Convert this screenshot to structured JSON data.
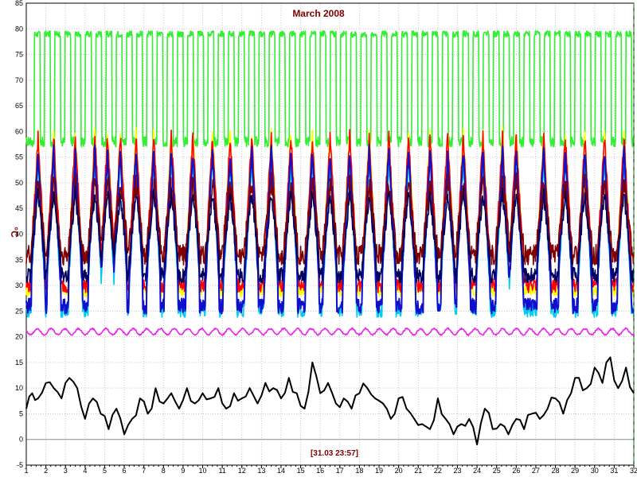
{
  "chart_data": {
    "type": "line",
    "title": "March 2008",
    "ylabel": "°C",
    "timestamp_label": "[31.03 23:57]",
    "xlim": [
      1,
      32
    ],
    "ylim": [
      -5,
      85
    ],
    "x_ticks": [
      "1",
      "2",
      "3",
      "4",
      "5",
      "6",
      "7",
      "8",
      "9",
      "10",
      "11",
      "12",
      "13",
      "14",
      "15",
      "16",
      "17",
      "18",
      "19",
      "20",
      "21",
      "22",
      "23",
      "24",
      "25",
      "26",
      "27",
      "28",
      "29",
      "30",
      "31",
      "32"
    ],
    "y_ticks": [
      "-5",
      "0",
      "5",
      "10",
      "15",
      "20",
      "25",
      "30",
      "35",
      "40",
      "45",
      "50",
      "55",
      "60",
      "65",
      "70",
      "75",
      "80",
      "85"
    ],
    "grid": true,
    "cursor_x": 32,
    "colors": {
      "grid": "#c8c8c8",
      "zero_line": "#8c8c8c",
      "axis": "#000000",
      "cursor": "#008000",
      "title": "#800000"
    },
    "series": [
      {
        "color": "#33ee33",
        "base": 79,
        "trough": 58,
        "dip_width": 0.22,
        "noise": 0.6,
        "peaks": []
      },
      {
        "color": "#ffff00",
        "base": 29,
        "peak": 60,
        "noise": 1.2,
        "peaks": [
          1.6,
          2.4,
          3.5,
          4.5,
          5.15,
          5.8,
          6.6,
          7.5,
          8.4,
          9.5,
          10.5,
          11.4,
          12.5,
          13.5,
          14.5,
          15.6,
          16.5,
          17.5,
          18.5,
          19.5,
          20.5,
          21.6,
          22.5,
          23.3,
          24.3,
          25.3,
          26.0,
          27.4,
          28.5,
          29.5,
          30.5,
          31.5
        ]
      },
      {
        "color": "#ff0000",
        "base": 30,
        "peak": 59,
        "noise": 1.4,
        "peaks": [
          1.6,
          2.4,
          3.5,
          4.5,
          5.15,
          5.8,
          6.6,
          7.5,
          8.4,
          9.5,
          10.5,
          11.4,
          12.5,
          13.5,
          14.5,
          15.6,
          16.5,
          17.5,
          18.5,
          19.5,
          20.5,
          21.6,
          22.5,
          23.3,
          24.3,
          25.3,
          26.0,
          27.4,
          28.5,
          29.5,
          30.5,
          31.5
        ]
      },
      {
        "color": "#00ccee",
        "base": 25,
        "peak": 54,
        "noise": 1.2,
        "peaks": [
          1.6,
          2.4,
          3.5,
          4.5,
          5.15,
          5.8,
          6.6,
          7.5,
          8.4,
          9.5,
          10.5,
          11.4,
          12.5,
          13.5,
          14.5,
          15.6,
          16.5,
          17.5,
          18.5,
          19.5,
          20.5,
          21.6,
          22.5,
          23.3,
          24.3,
          25.3,
          26.0,
          27.4,
          28.5,
          29.5,
          30.5,
          31.5
        ]
      },
      {
        "color": "#1010cc",
        "base": 26,
        "peak": 56,
        "noise": 1.5,
        "peaks": [
          1.6,
          2.4,
          3.5,
          4.5,
          5.15,
          5.8,
          6.6,
          7.5,
          8.4,
          9.5,
          10.5,
          11.4,
          12.5,
          13.5,
          14.5,
          15.6,
          16.5,
          17.5,
          18.5,
          19.5,
          20.5,
          21.6,
          22.5,
          23.3,
          24.3,
          25.3,
          26.0,
          27.4,
          28.5,
          29.5,
          30.5,
          31.5
        ]
      },
      {
        "color": "#800000",
        "base": 36,
        "peak": 50,
        "noise": 2.0,
        "peaks": [
          1.6,
          2.4,
          3.5,
          4.5,
          5.15,
          5.8,
          6.6,
          7.5,
          8.4,
          9.5,
          10.5,
          11.4,
          12.5,
          13.5,
          14.5,
          15.6,
          16.5,
          17.5,
          18.5,
          19.5,
          20.5,
          21.6,
          22.5,
          23.3,
          24.3,
          25.3,
          26.0,
          27.4,
          28.5,
          29.5,
          30.5,
          31.5
        ]
      },
      {
        "color": "#000060",
        "base": 32,
        "peak": 48,
        "noise": 1.5,
        "peaks": [
          1.6,
          2.4,
          3.5,
          4.5,
          5.15,
          5.8,
          6.6,
          7.5,
          8.4,
          9.5,
          10.5,
          11.4,
          12.5,
          13.5,
          14.5,
          15.6,
          16.5,
          17.5,
          18.5,
          19.5,
          20.5,
          21.6,
          22.5,
          23.3,
          24.3,
          25.3,
          26.0,
          27.4,
          28.5,
          29.5,
          30.5,
          31.5
        ]
      },
      {
        "color": "#ee22ee",
        "base": 21,
        "amp": 0.6,
        "noise": 0.3,
        "peaks": []
      },
      {
        "color": "#000000",
        "x": [
          1,
          1.3,
          1.6,
          2,
          2.4,
          2.8,
          3.2,
          3.6,
          4,
          4.4,
          4.8,
          5.2,
          5.6,
          6,
          6.4,
          6.8,
          7.2,
          7.6,
          8,
          8.4,
          8.8,
          9.2,
          9.6,
          10,
          10.4,
          10.8,
          11.2,
          11.6,
          12,
          12.4,
          12.8,
          13.2,
          13.6,
          14,
          14.4,
          14.8,
          15.2,
          15.6,
          16,
          16.4,
          16.8,
          17.2,
          17.6,
          18,
          18.4,
          18.8,
          19.2,
          19.6,
          20,
          20.4,
          20.8,
          21.2,
          21.6,
          22,
          22.4,
          22.8,
          23.2,
          23.6,
          24,
          24.4,
          24.8,
          25.2,
          25.6,
          26,
          26.4,
          26.8,
          27.2,
          27.6,
          28,
          28.4,
          28.8,
          29.2,
          29.6,
          30,
          30.4,
          30.8,
          31.2,
          31.6,
          32
        ],
        "values": [
          6,
          9,
          8,
          11,
          10,
          8,
          12,
          10,
          4,
          8,
          5,
          2,
          6,
          1,
          4,
          8,
          5,
          10,
          7,
          9,
          6,
          10,
          7,
          9,
          8,
          10,
          6,
          9,
          8,
          10,
          7,
          11,
          10,
          8,
          12,
          9,
          6,
          15,
          9,
          11,
          7,
          8,
          6,
          9,
          10,
          8,
          7,
          4,
          8,
          6,
          4,
          3,
          2,
          8,
          4,
          1,
          3,
          4,
          -1,
          6,
          2,
          3,
          1,
          4,
          2,
          5,
          4,
          6,
          8,
          5,
          9,
          12,
          10,
          14,
          11,
          16,
          10,
          14,
          9
        ]
      }
    ]
  }
}
